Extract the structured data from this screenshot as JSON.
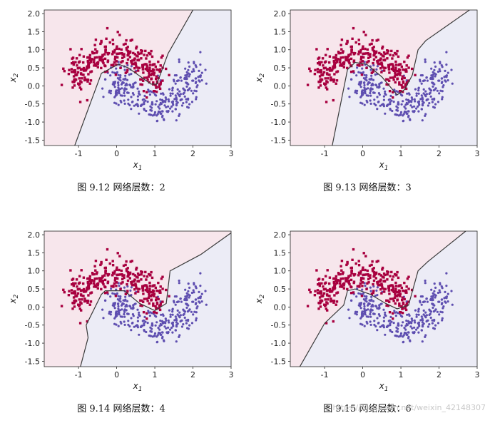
{
  "colors": {
    "class0_region": "#f7e6ec",
    "class1_region": "#ececf6",
    "class0_points": "#a8003f",
    "class1_points": "#5e4eb0",
    "boundary": "#3a3a3a"
  },
  "chart_data": [
    {
      "type": "scatter",
      "caption": "图  9.12  网络层数：2",
      "xlabel": "x",
      "xlabel_sub": "1",
      "ylabel": "x",
      "ylabel_sub": "2",
      "xlim": [
        -1.9,
        3.0
      ],
      "ylim": [
        -1.65,
        2.1
      ],
      "xticks": [
        "-1",
        "0",
        "1",
        "2",
        "3"
      ],
      "yticks": [
        "2.0",
        "1.5",
        "1.0",
        "0.5",
        "0.0",
        "-0.5",
        "-1.0",
        "-1.5"
      ],
      "xtick_values": [
        -1,
        0,
        1,
        2,
        3
      ],
      "ytick_values": [
        2.0,
        1.5,
        1.0,
        0.5,
        0.0,
        -0.5,
        -1.0,
        -1.5
      ],
      "decision_boundary": [
        [
          -1.1,
          -1.65
        ],
        [
          -0.4,
          0.35
        ],
        [
          0.05,
          0.6
        ],
        [
          0.3,
          0.5
        ],
        [
          0.9,
          0.05
        ],
        [
          1.05,
          0.05
        ],
        [
          1.35,
          0.9
        ],
        [
          2.0,
          2.1
        ]
      ],
      "series": [
        {
          "marker": "square",
          "color_key": "class0_points",
          "shape": "upper_moon"
        },
        {
          "marker": "circle",
          "color_key": "class1_points",
          "shape": "lower_moon"
        }
      ]
    },
    {
      "type": "scatter",
      "caption": "图  9.13  网络层数：3",
      "xlabel": "x",
      "xlabel_sub": "1",
      "ylabel": "x",
      "ylabel_sub": "2",
      "xlim": [
        -1.9,
        3.0
      ],
      "ylim": [
        -1.65,
        2.1
      ],
      "xticks": [
        "-1",
        "0",
        "1",
        "2",
        "3"
      ],
      "yticks": [
        "2.0",
        "1.5",
        "1.0",
        "0.5",
        "0.0",
        "-0.5",
        "-1.0",
        "-1.5"
      ],
      "xtick_values": [
        -1,
        0,
        1,
        2,
        3
      ],
      "ytick_values": [
        2.0,
        1.5,
        1.0,
        0.5,
        0.0,
        -0.5,
        -1.0,
        -1.5
      ],
      "decision_boundary": [
        [
          -0.8,
          -1.65
        ],
        [
          -0.4,
          0.45
        ],
        [
          -0.2,
          0.65
        ],
        [
          0.1,
          0.6
        ],
        [
          0.5,
          0.25
        ],
        [
          0.9,
          -0.25
        ],
        [
          1.1,
          -0.1
        ],
        [
          1.3,
          0.3
        ],
        [
          1.45,
          1.0
        ],
        [
          1.65,
          1.25
        ],
        [
          2.8,
          2.1
        ]
      ],
      "series": [
        {
          "marker": "square",
          "color_key": "class0_points",
          "shape": "upper_moon"
        },
        {
          "marker": "circle",
          "color_key": "class1_points",
          "shape": "lower_moon"
        }
      ]
    },
    {
      "type": "scatter",
      "caption": "图  9.14  网络层数：4",
      "xlabel": "x",
      "xlabel_sub": "1",
      "ylabel": "x",
      "ylabel_sub": "2",
      "xlim": [
        -1.9,
        3.0
      ],
      "ylim": [
        -1.65,
        2.1
      ],
      "xticks": [
        "-1",
        "0",
        "1",
        "2",
        "3"
      ],
      "yticks": [
        "2.0",
        "1.5",
        "1.0",
        "0.5",
        "0.0",
        "-0.5",
        "-1.0",
        "-1.5"
      ],
      "xtick_values": [
        -1,
        0,
        1,
        2,
        3
      ],
      "ytick_values": [
        2.0,
        1.5,
        1.0,
        0.5,
        0.0,
        -0.5,
        -1.0,
        -1.5
      ],
      "decision_boundary": [
        [
          -0.95,
          -1.65
        ],
        [
          -0.75,
          -0.85
        ],
        [
          -0.8,
          -0.5
        ],
        [
          -0.4,
          0.35
        ],
        [
          -0.3,
          0.45
        ],
        [
          0.2,
          0.45
        ],
        [
          0.6,
          0.1
        ],
        [
          1.0,
          -0.1
        ],
        [
          1.3,
          0.1
        ],
        [
          1.4,
          1.0
        ],
        [
          2.2,
          1.45
        ],
        [
          3.0,
          2.05
        ]
      ],
      "series": [
        {
          "marker": "square",
          "color_key": "class0_points",
          "shape": "upper_moon"
        },
        {
          "marker": "circle",
          "color_key": "class1_points",
          "shape": "lower_moon"
        }
      ]
    },
    {
      "type": "scatter",
      "caption": "图  9.15  网络层数：6",
      "xlabel": "x",
      "xlabel_sub": "1",
      "ylabel": "x",
      "ylabel_sub": "2",
      "xlim": [
        -1.9,
        3.0
      ],
      "ylim": [
        -1.65,
        2.1
      ],
      "xticks": [
        "-1",
        "0",
        "1",
        "2",
        "3"
      ],
      "yticks": [
        "2.0",
        "1.5",
        "1.0",
        "0.5",
        "0.0",
        "-0.5",
        "-1.0",
        "-1.5"
      ],
      "xtick_values": [
        -1,
        0,
        1,
        2,
        3
      ],
      "ytick_values": [
        2.0,
        1.5,
        1.0,
        0.5,
        0.0,
        -0.5,
        -1.0,
        -1.5
      ],
      "decision_boundary": [
        [
          -1.65,
          -1.65
        ],
        [
          -1.0,
          -0.45
        ],
        [
          -0.5,
          0.05
        ],
        [
          -0.4,
          0.45
        ],
        [
          -0.2,
          0.5
        ],
        [
          0.2,
          0.35
        ],
        [
          0.6,
          0.1
        ],
        [
          0.9,
          -0.05
        ],
        [
          1.2,
          0.05
        ],
        [
          1.45,
          1.0
        ],
        [
          1.7,
          1.25
        ],
        [
          2.7,
          2.1
        ]
      ],
      "series": [
        {
          "marker": "square",
          "color_key": "class0_points",
          "shape": "upper_moon"
        },
        {
          "marker": "circle",
          "color_key": "class1_points",
          "shape": "lower_moon"
        }
      ]
    }
  ],
  "watermark": "https://blog.csdn.net/weixin_42148307"
}
